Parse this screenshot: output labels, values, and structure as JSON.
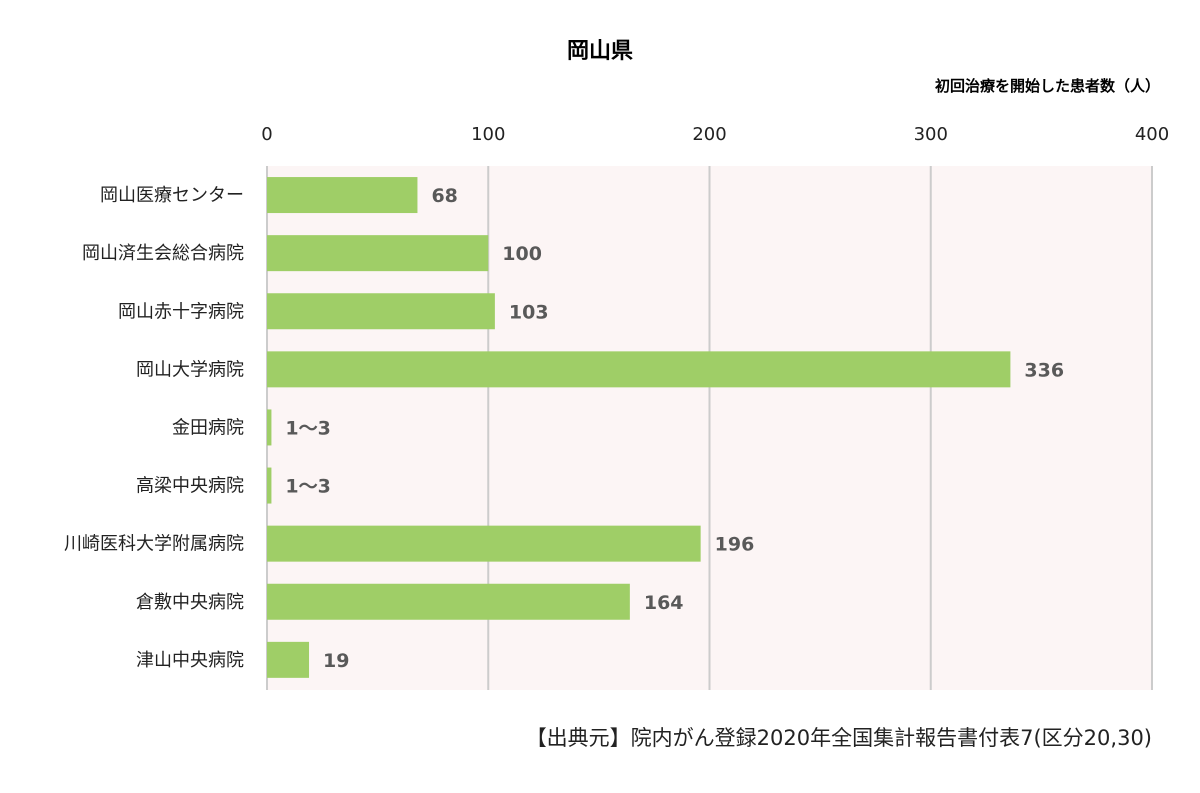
{
  "chart_data": {
    "type": "bar",
    "orientation": "horizontal",
    "title": "岡山県",
    "xlabel": "初回治療を開始した患者数（人）",
    "xlim": [
      0,
      400
    ],
    "xticks": [
      0,
      100,
      200,
      300,
      400
    ],
    "grid": true,
    "categories": [
      "岡山医療センター",
      "岡山済生会総合病院",
      "岡山赤十字病院",
      "岡山大学病院",
      "金田病院",
      "高梁中央病院",
      "川崎医科大学附属病院",
      "倉敷中央病院",
      "津山中央病院"
    ],
    "values": [
      68,
      100,
      103,
      336,
      2,
      2,
      196,
      164,
      19
    ],
    "value_labels": [
      "68",
      "100",
      "103",
      "336",
      "1～3",
      "1～3",
      "196",
      "164",
      "19"
    ],
    "colors": {
      "bar": "#9fce67",
      "plot_bg": "#fcf5f5",
      "grid": "#cccccc",
      "value_label": "#595959"
    }
  },
  "source": "【出典元】院内がん登録2020年全国集計報告書付表7(区分20,30)"
}
